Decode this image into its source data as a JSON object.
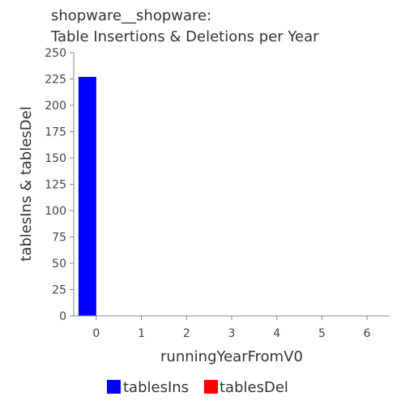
{
  "chart_data": {
    "type": "bar",
    "title_lines": [
      "shopware__shopware:",
      "Table Insertions & Deletions per Year"
    ],
    "xlabel": "runningYearFromV0",
    "ylabel": "tablesIns & tablesDel",
    "categories": [
      "0",
      "1",
      "2",
      "3",
      "4",
      "5",
      "6"
    ],
    "series": [
      {
        "name": "tablesIns",
        "color": "#0000ff",
        "values": [
          227,
          0,
          0,
          0,
          0,
          0,
          0
        ]
      },
      {
        "name": "tablesDel",
        "color": "#ff0000",
        "values": [
          0,
          0,
          0,
          0,
          0,
          0,
          0
        ]
      }
    ],
    "ylim": [
      0,
      250
    ],
    "yticks": [
      0,
      25,
      50,
      75,
      100,
      125,
      150,
      175,
      200,
      225,
      250
    ],
    "xlim": [
      -0.5,
      6.5
    ],
    "grid": false,
    "legend_position": "bottom"
  }
}
